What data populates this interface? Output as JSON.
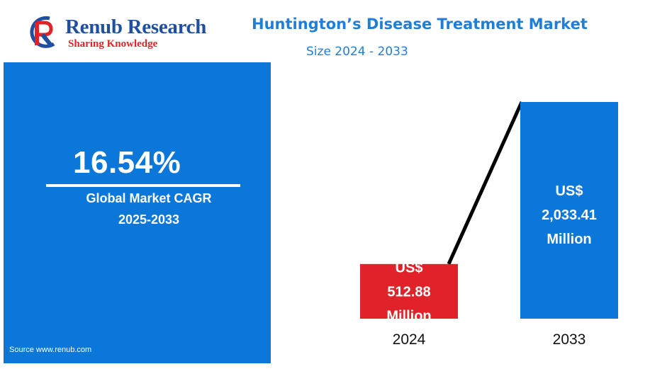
{
  "brand": {
    "name": "Renub Research",
    "tagline": "Sharing Knowledge"
  },
  "header": {
    "title": "Huntington’s Disease Treatment Market",
    "subtitle": "Size 2024 - 2033"
  },
  "cagr_panel": {
    "value": "16.54%",
    "label": "Global Market CAGR",
    "period": "2025-2033",
    "source": "Source  www.renub.com"
  },
  "colors": {
    "accent_blue": "#0b77d8",
    "title_blue": "#1f7fd8",
    "bar_2024": "#e0232a",
    "bar_2033": "#0b77d8",
    "logo_blue": "#1f4fa0",
    "logo_red": "#e0232a"
  },
  "chart_data": {
    "type": "bar",
    "categories": [
      "2024",
      "2033"
    ],
    "values": [
      512.88,
      2033.41
    ],
    "value_labels": [
      [
        "US$",
        "512.88",
        "Million"
      ],
      [
        "US$",
        "2,033.41",
        "Million"
      ]
    ],
    "bar_colors": [
      "#e0232a",
      "#0b77d8"
    ],
    "trend_line": true,
    "grid": false
  }
}
